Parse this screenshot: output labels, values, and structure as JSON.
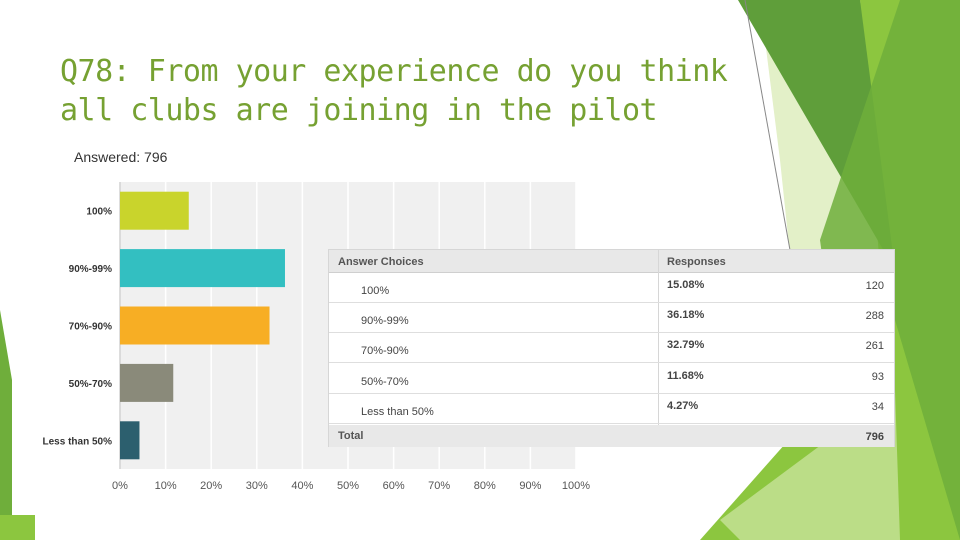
{
  "slide": {
    "title": "Q78: From your experience do you think all clubs are joining in the pilot",
    "answered": "Answered: 796"
  },
  "colors": {
    "title": "#76a132",
    "green_dark": "#5f9e3a",
    "green_light": "#8cc63f",
    "green_pale": "#d7ebb3"
  },
  "chart_data": {
    "type": "bar",
    "orientation": "horizontal",
    "categories": [
      "100%",
      "90%-99%",
      "70%-90%",
      "50%-70%",
      "Less than 50%"
    ],
    "values": [
      15.08,
      36.18,
      32.79,
      11.68,
      4.27
    ],
    "colors": [
      "#c9d42c",
      "#33bfc1",
      "#f7ae24",
      "#8a8a7a",
      "#2c5f6e"
    ],
    "xlim": [
      0,
      100
    ],
    "xticks": [
      "0%",
      "10%",
      "20%",
      "30%",
      "40%",
      "50%",
      "60%",
      "70%",
      "80%",
      "90%",
      "100%"
    ],
    "grid": true
  },
  "table": {
    "headers": [
      "Answer Choices",
      "Responses"
    ],
    "rows": [
      {
        "label": "100%",
        "pct": "15.08%",
        "count": "120"
      },
      {
        "label": "90%-99%",
        "pct": "36.18%",
        "count": "288"
      },
      {
        "label": "70%-90%",
        "pct": "32.79%",
        "count": "261"
      },
      {
        "label": "50%-70%",
        "pct": "11.68%",
        "count": "93"
      },
      {
        "label": "Less than 50%",
        "pct": "4.27%",
        "count": "34"
      }
    ],
    "total_label": "Total",
    "total_count": "796"
  }
}
